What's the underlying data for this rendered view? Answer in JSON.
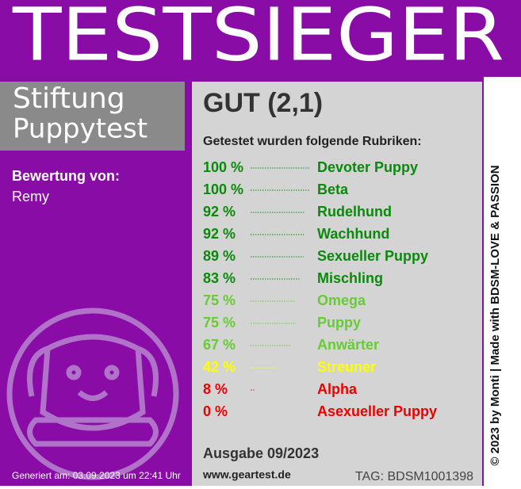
{
  "header": {
    "title": "TESTSIEGER"
  },
  "brand": {
    "line1": "Stiftung",
    "line2": "Puppytest"
  },
  "reviewer": {
    "label": "Bewertung von:",
    "name": "Remy"
  },
  "generated": "Generiert am: 03.09.2023 um 22:41 Uhr",
  "result": {
    "grade": "GUT (2,1)",
    "intro": "Getestet wurden folgende Rubriken:",
    "rows": [
      {
        "value": 100,
        "label": "100 %",
        "name": "Devoter Puppy",
        "color": "#0a8a0a"
      },
      {
        "value": 100,
        "label": "100 %",
        "name": "Beta",
        "color": "#0a8a0a"
      },
      {
        "value": 92,
        "label": "92 %",
        "name": "Rudelhund",
        "color": "#0a8a0a"
      },
      {
        "value": 92,
        "label": "92 %",
        "name": "Wachhund",
        "color": "#0a8a0a"
      },
      {
        "value": 89,
        "label": "89 %",
        "name": "Sexueller Puppy",
        "color": "#0a8a0a"
      },
      {
        "value": 83,
        "label": "83 %",
        "name": "Mischling",
        "color": "#0a8a0a"
      },
      {
        "value": 75,
        "label": "75 %",
        "name": "Omega",
        "color": "#66cc33"
      },
      {
        "value": 75,
        "label": "75 %",
        "name": "Puppy",
        "color": "#66cc33"
      },
      {
        "value": 67,
        "label": "67 %",
        "name": "Anwärter",
        "color": "#66cc33"
      },
      {
        "value": 42,
        "label": "42 %",
        "name": "Streuner",
        "color": "#ffff00"
      },
      {
        "value": 8,
        "label": "8 %",
        "name": "Alpha",
        "color": "#ee0000"
      },
      {
        "value": 0,
        "label": "0 %",
        "name": "Asexueller Puppy",
        "color": "#ee0000"
      }
    ],
    "issue": "Ausgabe 09/2023",
    "website": "www.geartest.de",
    "tag": "TAG: BDSM1001398"
  },
  "credit": "© 2023 by Monti | Made with BDSM-LOVE & PASSION"
}
